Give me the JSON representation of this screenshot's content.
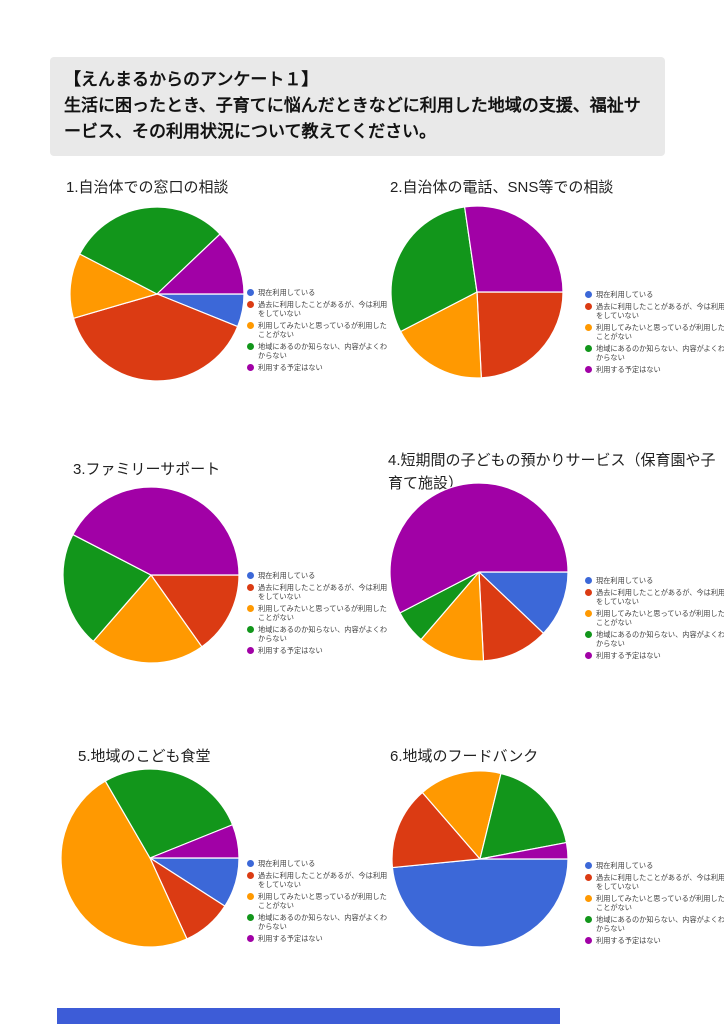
{
  "header": {
    "title": "【えんまるからのアンケート１】",
    "description": "生活に困ったとき、子育てに悩んだときなどに利用した地域の支援、福祉サービス、その利用状況について教えてください。",
    "background": "#e9e9e9"
  },
  "chart_data": {
    "type": "pie",
    "direction": "clockwise",
    "start_angle_deg_from_3oclock": 0,
    "legend_position": "right",
    "categories": [
      "現在利用している",
      "過去に利用したことがあるが、今は利用をしていない",
      "利用してみたいと思っているが利用したことがない",
      "地域にあるのか知らない、内容がよくわからない",
      "利用する予定はない"
    ],
    "colors": [
      "#3c68d8",
      "#db3b13",
      "#ff9901",
      "#12961b",
      "#a101a6"
    ],
    "charts": [
      {
        "title": "1.自治体での窓口の相談",
        "values": [
          6.1,
          39.4,
          12.1,
          30.3,
          12.1
        ],
        "percent_labels": [
          "",
          "39.4%",
          "12.1%",
          "30.3%",
          "12.1%"
        ]
      },
      {
        "title": "2.自治体の電話、SNS等での相談",
        "values": [
          0,
          24.2,
          18.2,
          30.3,
          27.3
        ],
        "percent_labels": [
          "",
          "24.2%",
          "18.2%",
          "30.3%",
          "27.3%"
        ]
      },
      {
        "title": "3.ファミリーサポート",
        "values": [
          0,
          15.2,
          21.2,
          21.2,
          42.4
        ],
        "percent_labels": [
          "",
          "15.2%",
          "21.2%",
          "21.2%",
          "42.4%"
        ]
      },
      {
        "title": "4.短期間の子どもの預かりサービス（保育園や子育て施設）",
        "values": [
          12.1,
          12.1,
          12.1,
          6.1,
          57.6
        ],
        "percent_labels": [
          "12.1%",
          "12.1%",
          "12.1%",
          "",
          "57.6%"
        ]
      },
      {
        "title": "5.地域のこども食堂",
        "values": [
          9.1,
          9.1,
          48.5,
          27.3,
          6.1
        ],
        "percent_labels": [
          "9.1%",
          "9.1%",
          "48.5%",
          "27.3%",
          ""
        ]
      },
      {
        "title": "6.地域のフードバンク",
        "values": [
          48.5,
          15.2,
          15.2,
          18.2,
          3.0
        ],
        "percent_labels": [
          "48.5%",
          "15.2%",
          "15.2%",
          "18.2%",
          ""
        ]
      }
    ]
  },
  "footer": {
    "bar_color": "#3d5cd7"
  }
}
